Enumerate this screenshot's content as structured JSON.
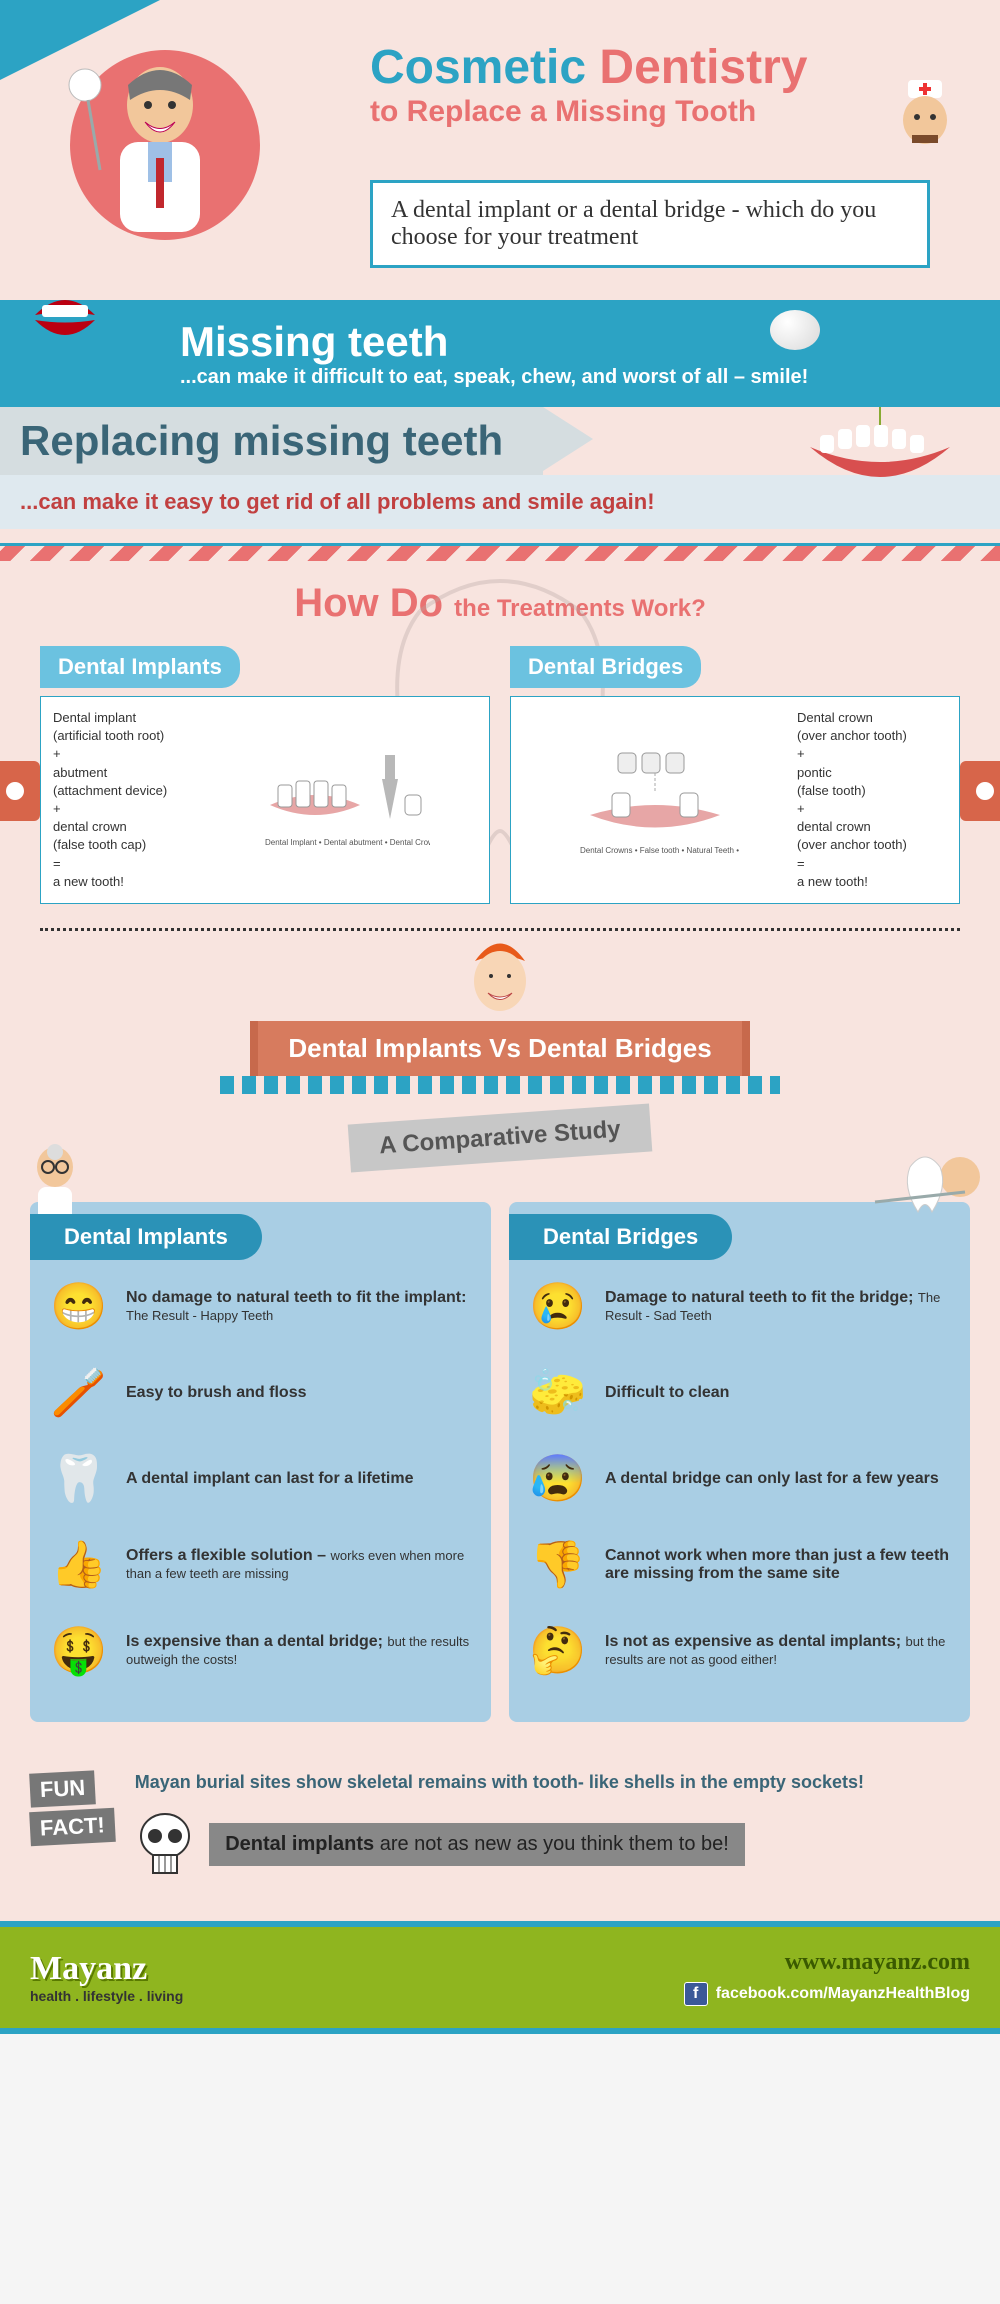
{
  "colors": {
    "bg": "#f8e4df",
    "teal": "#2ca3c4",
    "teal_dark": "#2b92b7",
    "salmon": "#e97171",
    "rust": "#d77b5e",
    "panel_blue": "#a9cee4",
    "tab_blue": "#6bc2e0",
    "footer_green": "#8fb51f",
    "gray_band": "#d5dde0",
    "lt_blue_band": "#dfe9ef",
    "gray_chip": "#c7c7c7",
    "dark_gray": "#777777"
  },
  "hero": {
    "title_part1": "Cosmetic ",
    "title_part2": "Dentistry",
    "subtitle": "to Replace a Missing Tooth",
    "box": "A dental implant or a dental bridge - which do you choose for your treatment"
  },
  "band1": {
    "heading": "Missing teeth",
    "text": "...can make it difficult to eat, speak, chew, and worst of all – smile!"
  },
  "band2": {
    "heading": "Replacing missing teeth",
    "text": "...can make it easy to get rid of all problems and smile again!"
  },
  "howdo": {
    "title_a": "How Do ",
    "title_b": "the Treatments Work?",
    "left_tab": "Dental Implants",
    "right_tab": "Dental Bridges",
    "implant_formula": "Dental implant\n(artificial tooth root)\n+\nabutment\n(attachment device)\n+\ndental crown\n(false tooth cap)\n=\na new tooth!",
    "implant_labels": "Dental Implant • Dental abutment • Dental Crown",
    "bridge_formula": "Dental crown\n(over anchor tooth)\n+\npontic\n(false tooth)\n+\ndental crown\n(over anchor tooth)\n=\na new tooth!",
    "bridge_labels": "Dental Crowns • False tooth • Natural Teeth • Dental Bridge Structure"
  },
  "vs": {
    "title": "Dental Implants Vs Dental Bridges",
    "subtitle": "A Comparative Study"
  },
  "compare": {
    "left_title": "Dental Implants",
    "right_title": "Dental Bridges",
    "implants": [
      {
        "icon": "happy-teeth",
        "text": "No damage to natural teeth to fit the implant:",
        "sub": " The Result - Happy Teeth"
      },
      {
        "icon": "brush-person",
        "text": "Easy to brush and floss",
        "sub": ""
      },
      {
        "icon": "strong-tooth",
        "text": "A dental implant can last for a lifetime",
        "sub": ""
      },
      {
        "icon": "thumbs-up",
        "text": "Offers a flexible solution – ",
        "sub": "works even when more than a few teeth are missing"
      },
      {
        "icon": "money-face",
        "text": "Is expensive than a dental bridge; ",
        "sub": "but the results outweigh the costs!"
      }
    ],
    "bridges": [
      {
        "icon": "sad-tooth",
        "text": "Damage to natural teeth to fit the bridge; ",
        "sub": "The Result - Sad Teeth"
      },
      {
        "icon": "scrub-person",
        "text": "Difficult to clean",
        "sub": ""
      },
      {
        "icon": "worried-tooth",
        "text": "A dental bridge can only last for a few years",
        "sub": ""
      },
      {
        "icon": "thumbs-down",
        "text": "Cannot work when more than just a few teeth are missing from the same site",
        "sub": ""
      },
      {
        "icon": "confused-face",
        "text": "Is not as expensive as dental implants; ",
        "sub": "but the results are not as good either!"
      }
    ]
  },
  "funfact": {
    "badge1": "FUN",
    "badge2": "FACT!",
    "text": "Mayan burial sites show skeletal remains with tooth- like shells in the empty sockets!",
    "bar_bold": "Dental implants ",
    "bar_rest": "are not as new as you think them to be!"
  },
  "footer": {
    "brand": "Mayanz",
    "tagline": "health . lifestyle . living",
    "url": "www.mayanz.com",
    "fb": "facebook.com/MayanzHealthBlog"
  }
}
